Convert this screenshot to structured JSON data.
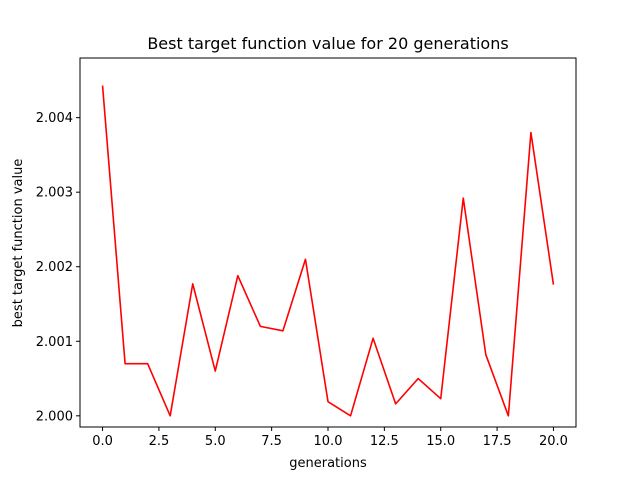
{
  "chart_data": {
    "type": "line",
    "title": "Best target function value for 20 generations",
    "xlabel": "generations",
    "ylabel": "best target function value",
    "xlim": [
      -1,
      21
    ],
    "ylim": [
      1.99985,
      2.0048
    ],
    "xticks": [
      0.0,
      2.5,
      5.0,
      7.5,
      10.0,
      12.5,
      15.0,
      17.5,
      20.0
    ],
    "xtick_labels": [
      "0.0",
      "2.5",
      "5.0",
      "7.5",
      "10.0",
      "12.5",
      "15.0",
      "17.5",
      "20.0"
    ],
    "yticks": [
      2.0,
      2.001,
      2.002,
      2.003,
      2.004
    ],
    "ytick_labels": [
      "2.000",
      "2.001",
      "2.002",
      "2.003",
      "2.004"
    ],
    "grid": false,
    "series": [
      {
        "color": "#ff0000",
        "x": [
          0,
          1,
          2,
          3,
          4,
          5,
          6,
          7,
          8,
          9,
          10,
          11,
          12,
          13,
          14,
          15,
          16,
          17,
          18,
          19,
          20
        ],
        "values": [
          2.00443,
          2.0007,
          2.0007,
          2.0,
          2.00177,
          2.0006,
          2.00188,
          2.0012,
          2.00114,
          2.0021,
          2.00019,
          2.0,
          2.00104,
          2.00016,
          2.0005,
          2.00023,
          2.00292,
          2.00082,
          2.0,
          2.0038,
          2.00176
        ]
      }
    ]
  }
}
